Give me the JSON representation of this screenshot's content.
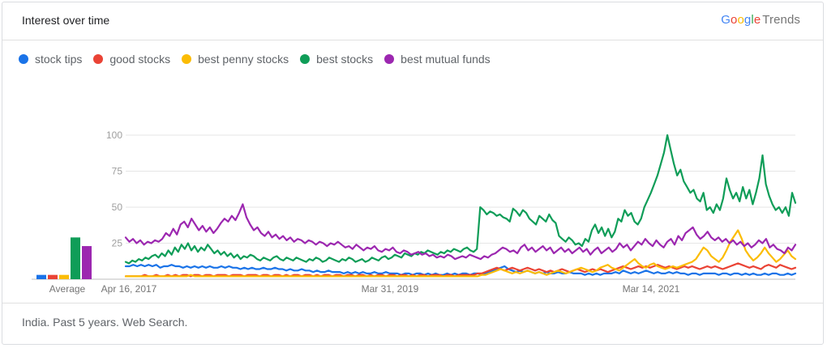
{
  "header": {
    "title": "Interest over time",
    "brand_parts": [
      "G",
      "o",
      "o",
      "g",
      "l",
      "e"
    ],
    "brand_suffix": "Trends"
  },
  "footer": {
    "text": "India. Past 5 years. Web Search."
  },
  "chart_data": {
    "type": "line",
    "title": "Interest over time",
    "xlabel": "",
    "ylabel": "",
    "ylim": [
      0,
      100
    ],
    "yticks": [
      100,
      75,
      50,
      25
    ],
    "xticks": [
      "Apr 16, 2017",
      "Mar 31, 2019",
      "Mar 14, 2021"
    ],
    "grid": true,
    "legend": "top-left",
    "average_label": "Average",
    "series": [
      {
        "name": "stock tips",
        "color": "#1a73e8",
        "average": 3,
        "values": [
          9,
          9,
          10,
          9,
          10,
          9,
          10,
          9,
          10,
          8,
          9,
          9,
          10,
          9,
          9,
          8,
          9,
          8,
          9,
          8,
          9,
          8,
          9,
          8,
          8,
          9,
          8,
          9,
          8,
          8,
          7,
          8,
          7,
          8,
          7,
          7,
          8,
          7,
          7,
          8,
          7,
          7,
          6,
          7,
          6,
          6,
          7,
          6,
          6,
          5,
          6,
          5,
          5,
          6,
          5,
          5,
          5,
          4,
          5,
          4,
          5,
          4,
          5,
          4,
          4,
          5,
          4,
          4,
          5,
          4,
          4,
          4,
          3,
          4,
          4,
          3,
          4,
          4,
          3,
          4,
          3,
          4,
          3,
          3,
          4,
          3,
          4,
          3,
          4,
          4,
          3,
          4,
          4,
          3,
          4,
          5,
          6,
          7,
          8,
          9,
          7,
          6,
          5,
          6,
          5,
          6,
          5,
          4,
          5,
          4,
          5,
          4,
          4,
          5,
          4,
          4,
          5,
          4,
          4,
          4,
          3,
          4,
          3,
          4,
          3,
          4,
          4,
          4,
          5,
          4,
          6,
          5,
          4,
          5,
          4,
          5,
          6,
          5,
          4,
          5,
          4,
          4,
          5,
          4,
          5,
          4,
          4,
          3,
          4,
          4,
          3,
          4,
          4,
          4,
          4,
          3,
          4,
          4,
          3,
          4,
          4,
          3,
          4,
          3,
          4,
          3,
          3,
          4,
          3,
          4,
          4,
          3,
          3,
          4,
          3,
          4
        ]
      },
      {
        "name": "good stocks",
        "color": "#ea4335",
        "average": 3,
        "values": [
          2,
          2,
          2,
          2,
          2,
          3,
          2,
          2,
          3,
          2,
          2,
          3,
          2,
          3,
          2,
          3,
          3,
          2,
          3,
          3,
          2,
          3,
          3,
          2,
          3,
          3,
          3,
          2,
          3,
          3,
          3,
          2,
          3,
          3,
          3,
          2,
          3,
          3,
          2,
          3,
          3,
          2,
          3,
          2,
          3,
          3,
          2,
          3,
          3,
          2,
          3,
          2,
          3,
          3,
          2,
          3,
          3,
          2,
          3,
          3,
          2,
          3,
          3,
          2,
          3,
          2,
          3,
          3,
          2,
          3,
          3,
          2,
          3,
          3,
          2,
          3,
          2,
          3,
          3,
          2,
          3,
          3,
          3,
          2,
          3,
          3,
          2,
          3,
          3,
          3,
          3,
          3,
          4,
          4,
          5,
          6,
          7,
          8,
          7,
          6,
          7,
          8,
          7,
          6,
          7,
          8,
          7,
          6,
          7,
          6,
          5,
          6,
          5,
          6,
          7,
          6,
          5,
          6,
          7,
          6,
          5,
          6,
          7,
          6,
          7,
          6,
          5,
          6,
          7,
          8,
          9,
          8,
          7,
          8,
          9,
          8,
          9,
          8,
          9,
          10,
          9,
          8,
          9,
          8,
          7,
          8,
          9,
          8,
          9,
          8,
          7,
          8,
          9,
          8,
          9,
          8,
          7,
          8,
          9,
          10,
          11,
          10,
          9,
          8,
          9,
          8,
          7,
          9,
          10,
          9,
          8,
          10,
          9,
          8,
          7,
          8
        ]
      },
      {
        "name": "best penny stocks",
        "color": "#fbbc04",
        "average": 3,
        "values": [
          2,
          2,
          2,
          2,
          2,
          2,
          2,
          2,
          2,
          2,
          2,
          2,
          2,
          2,
          2,
          2,
          2,
          3,
          2,
          2,
          2,
          2,
          2,
          2,
          2,
          2,
          2,
          2,
          2,
          2,
          2,
          2,
          2,
          2,
          2,
          2,
          2,
          2,
          2,
          2,
          2,
          2,
          2,
          2,
          2,
          2,
          2,
          2,
          2,
          2,
          2,
          2,
          2,
          2,
          2,
          2,
          2,
          2,
          2,
          2,
          2,
          2,
          2,
          2,
          2,
          2,
          2,
          2,
          2,
          2,
          2,
          2,
          2,
          2,
          2,
          2,
          2,
          2,
          2,
          2,
          2,
          2,
          2,
          2,
          2,
          2,
          2,
          2,
          2,
          2,
          2,
          2,
          2,
          3,
          3,
          4,
          5,
          6,
          7,
          6,
          5,
          4,
          5,
          4,
          5,
          6,
          5,
          4,
          5,
          4,
          3,
          4,
          5,
          6,
          5,
          4,
          5,
          6,
          7,
          8,
          7,
          6,
          5,
          6,
          8,
          9,
          10,
          8,
          7,
          6,
          8,
          10,
          12,
          14,
          11,
          9,
          8,
          10,
          11,
          9,
          8,
          7,
          8,
          9,
          8,
          9,
          10,
          11,
          12,
          14,
          18,
          22,
          20,
          16,
          14,
          12,
          15,
          20,
          26,
          30,
          34,
          28,
          20,
          16,
          13,
          15,
          18,
          22,
          18,
          15,
          12,
          14,
          17,
          20,
          16,
          14
        ]
      },
      {
        "name": "best stocks",
        "color": "#0f9d58",
        "average": 29,
        "values": [
          12,
          11,
          13,
          12,
          14,
          13,
          15,
          14,
          16,
          17,
          15,
          18,
          16,
          20,
          17,
          22,
          19,
          24,
          21,
          25,
          20,
          23,
          19,
          22,
          20,
          24,
          21,
          18,
          20,
          17,
          19,
          16,
          18,
          15,
          17,
          14,
          16,
          15,
          17,
          16,
          14,
          13,
          15,
          14,
          13,
          15,
          16,
          14,
          13,
          15,
          14,
          13,
          15,
          14,
          13,
          12,
          14,
          13,
          15,
          14,
          12,
          13,
          15,
          14,
          13,
          12,
          14,
          13,
          15,
          14,
          12,
          13,
          14,
          12,
          13,
          15,
          14,
          13,
          15,
          16,
          14,
          15,
          17,
          16,
          15,
          18,
          17,
          16,
          18,
          17,
          19,
          18,
          20,
          19,
          18,
          17,
          19,
          18,
          20,
          19,
          21,
          20,
          19,
          21,
          22,
          20,
          19,
          21,
          50,
          48,
          45,
          47,
          46,
          44,
          45,
          43,
          42,
          40,
          49,
          47,
          44,
          48,
          46,
          42,
          40,
          38,
          44,
          42,
          40,
          45,
          41,
          39,
          30,
          28,
          26,
          29,
          27,
          24,
          25,
          23,
          28,
          26,
          34,
          38,
          32,
          36,
          30,
          35,
          29,
          33,
          42,
          40,
          48,
          44,
          46,
          40,
          38,
          42,
          50,
          55,
          60,
          66,
          72,
          80,
          88,
          100,
          90,
          80,
          72,
          76,
          68,
          64,
          60,
          62,
          56,
          54,
          60,
          48,
          50,
          46,
          52,
          48,
          56,
          70,
          62,
          56,
          60,
          54,
          64,
          56,
          62,
          52,
          60,
          70,
          86,
          66,
          58,
          52,
          48,
          50,
          46,
          50,
          44,
          60,
          53
        ]
      },
      {
        "name": "best mutual funds",
        "color": "#9c27b0",
        "average": 23,
        "values": [
          29,
          26,
          28,
          25,
          27,
          24,
          26,
          25,
          27,
          26,
          28,
          32,
          30,
          35,
          31,
          38,
          40,
          36,
          42,
          38,
          34,
          37,
          33,
          36,
          32,
          35,
          39,
          42,
          40,
          44,
          41,
          46,
          52,
          43,
          38,
          34,
          36,
          32,
          30,
          33,
          29,
          31,
          28,
          30,
          27,
          29,
          26,
          28,
          27,
          25,
          27,
          26,
          24,
          26,
          25,
          23,
          25,
          24,
          26,
          24,
          22,
          23,
          21,
          24,
          22,
          20,
          22,
          21,
          23,
          20,
          19,
          21,
          20,
          22,
          19,
          18,
          20,
          19,
          17,
          18,
          19,
          17,
          18,
          16,
          17,
          15,
          16,
          15,
          17,
          16,
          14,
          15,
          16,
          15,
          17,
          16,
          15,
          14,
          16,
          15,
          17,
          18,
          20,
          22,
          21,
          19,
          20,
          18,
          22,
          24,
          20,
          22,
          19,
          21,
          23,
          20,
          22,
          18,
          20,
          22,
          19,
          21,
          18,
          20,
          22,
          19,
          21,
          17,
          20,
          22,
          18,
          20,
          22,
          19,
          21,
          25,
          22,
          24,
          20,
          23,
          26,
          24,
          28,
          25,
          23,
          27,
          24,
          22,
          26,
          28,
          24,
          30,
          27,
          32,
          34,
          36,
          31,
          28,
          30,
          33,
          29,
          27,
          29,
          26,
          28,
          25,
          27,
          24,
          26,
          23,
          25,
          22,
          24,
          27,
          25,
          28,
          22,
          24,
          21,
          20,
          18,
          22,
          20,
          24
        ]
      }
    ]
  }
}
